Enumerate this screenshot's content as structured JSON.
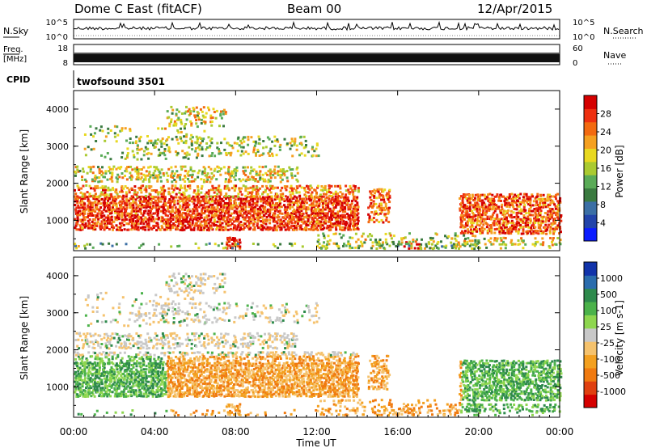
{
  "header": {
    "station": "Dome C East (fitACF)",
    "beam": "Beam 00",
    "date": "12/Apr/2015"
  },
  "top_panels": {
    "nsky_label": "N.Sky",
    "nsky_ticks": [
      "10^5",
      "10^0"
    ],
    "nsearch_label": "N.Search",
    "nsearch_ticks": [
      "10^5",
      "10^0"
    ],
    "freq_label": "Freq.",
    "freq_unit": "[MHz]",
    "freq_ticks": [
      "18",
      "8"
    ],
    "nave_label": "Nave",
    "nave_ticks": [
      "60",
      "0"
    ],
    "cpid_label": "CPID",
    "cpid_value": "twofsound 3501"
  },
  "chart_data": [
    {
      "type": "heatmap",
      "quantity": "Power",
      "ylabel": "Slant Range [km]",
      "yticks": [
        "1000",
        "2000",
        "3000",
        "4000"
      ],
      "ylim": [
        180,
        4500
      ],
      "xlim": [
        0,
        24
      ],
      "colorbar": {
        "label": "Power [dB]",
        "ticks": [
          "4",
          "8",
          "12",
          "16",
          "20",
          "24",
          "28"
        ],
        "range": [
          0,
          32
        ],
        "colors": [
          "#0b1cff",
          "#2244aa",
          "#3b6fa5",
          "#3a7a40",
          "#5aab57",
          "#aaca30",
          "#e8d820",
          "#f5a020",
          "#f36a10",
          "#ee3010",
          "#d50000"
        ]
      }
    },
    {
      "type": "heatmap",
      "quantity": "Velocity",
      "ylabel": "Slant Range [km]",
      "yticks": [
        "1000",
        "2000",
        "3000",
        "4000"
      ],
      "ylim": [
        180,
        4500
      ],
      "xlim": [
        0,
        24
      ],
      "colorbar": {
        "label": "Velocity [m s-1]",
        "ticks": [
          "1000",
          "500",
          "100",
          "25",
          "-25",
          "-100",
          "-500",
          "-1000"
        ],
        "colors": [
          "#1133aa",
          "#2a6cad",
          "#2e8a4c",
          "#4bb24a",
          "#8ed64f",
          "#c8c8c8",
          "#f5c26d",
          "#f3a020",
          "#f07a10",
          "#e04010",
          "#d50000"
        ]
      }
    }
  ],
  "x_axis": {
    "ticks": [
      "00:00",
      "04:00",
      "08:00",
      "12:00",
      "16:00",
      "20:00",
      "00:00"
    ],
    "label": "Time UT"
  }
}
